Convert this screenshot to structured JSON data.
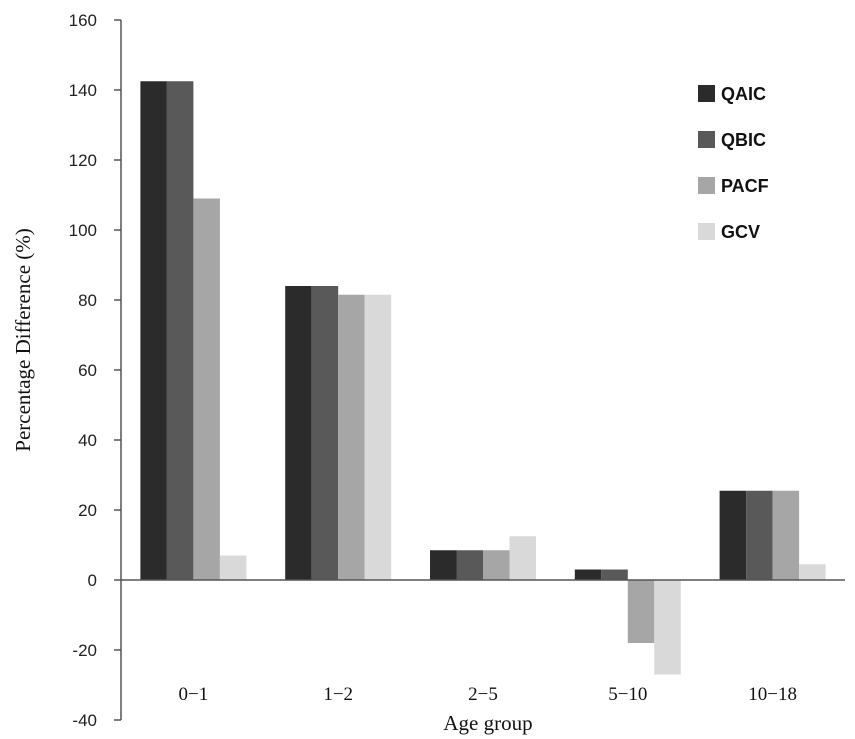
{
  "chart_data": {
    "type": "bar",
    "title": "",
    "xlabel": "Age group",
    "ylabel": "Percentage Difference (%)",
    "ylim": [
      -40,
      160
    ],
    "yticks": [
      -40,
      -20,
      0,
      20,
      40,
      60,
      80,
      100,
      120,
      140,
      160
    ],
    "grid": false,
    "legend_position": "top-right",
    "categories": [
      "0−1",
      "1−2",
      "2−5",
      "5−10",
      "10−18"
    ],
    "series": [
      {
        "name": "QAIC",
        "color": "#2b2b2b",
        "values": [
          142.5,
          84,
          8.5,
          3,
          25.5
        ]
      },
      {
        "name": "QBIC",
        "color": "#595959",
        "values": [
          142.5,
          84,
          8.5,
          3,
          25.5
        ]
      },
      {
        "name": "PACF",
        "color": "#a6a6a6",
        "values": [
          109,
          81.5,
          8.5,
          -18,
          25.5
        ]
      },
      {
        "name": "GCV",
        "color": "#d9d9d9",
        "values": [
          7,
          81.5,
          12.5,
          -27,
          4.5
        ]
      }
    ]
  }
}
